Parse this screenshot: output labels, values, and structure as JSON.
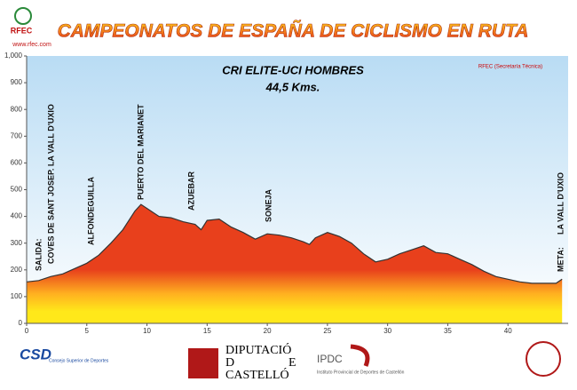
{
  "chart_data": {
    "type": "area",
    "title": "CAMPEONATOS DE ESPAÑA DE CICLISMO EN RUTA",
    "subtitle": "CRI ELITE-UCI HOMBRES",
    "distance": "44,5 Kms.",
    "credit": "RFEC (Secretaría Técnica)",
    "annotations": [
      "SALIDA:",
      "COVES DE SANT JOSEP.  LA VALL D'UXIO",
      "ALFONDEGUILLA",
      "PUERTO DEL MARIANET",
      "AZUEBAR",
      "SONEJA",
      "META:",
      "LA VALL D'UXIO"
    ],
    "x": [
      0,
      1,
      2,
      3,
      4,
      5,
      6,
      7,
      8,
      9,
      9.5,
      10,
      11,
      12,
      13,
      14,
      14.5,
      15,
      16,
      17,
      18,
      19,
      20,
      21,
      22,
      23,
      23.5,
      24,
      25,
      26,
      27,
      28,
      29,
      30,
      31,
      32,
      33,
      34,
      35,
      36,
      37,
      38,
      39,
      40,
      41,
      42,
      43,
      44,
      44.5
    ],
    "values": [
      155,
      160,
      175,
      185,
      205,
      225,
      255,
      300,
      350,
      420,
      445,
      430,
      400,
      395,
      380,
      370,
      350,
      385,
      390,
      360,
      340,
      315,
      335,
      330,
      320,
      305,
      295,
      320,
      340,
      325,
      300,
      260,
      230,
      240,
      260,
      275,
      290,
      265,
      260,
      240,
      220,
      195,
      175,
      165,
      155,
      150,
      150,
      150,
      165
    ],
    "color_top": "#e8401c",
    "color_bottom": "#ffe81a",
    "xlim": [
      0,
      45
    ],
    "xticks": [
      0,
      5,
      10,
      15,
      20,
      25,
      30,
      35,
      40
    ],
    "ylim": [
      0,
      1000
    ],
    "yticks": [
      0,
      100,
      200,
      300,
      400,
      500,
      600,
      700,
      800,
      900,
      {
        "value": 1000,
        "label": "1,000"
      }
    ]
  },
  "logos": {
    "rfec": "RFEC",
    "rfec_web": "www.rfec.com",
    "csd": "CSD",
    "csd_name": "Consejo Superior de Deportes",
    "dip_1": "DIPUTACIÓ",
    "dip_2": "D",
    "dip_3": "E",
    "dip_4": "CASTELLÓ",
    "ipdc": "IPDC",
    "ipdc_name": "Instituto Provincial de Deportes de Castellón"
  }
}
